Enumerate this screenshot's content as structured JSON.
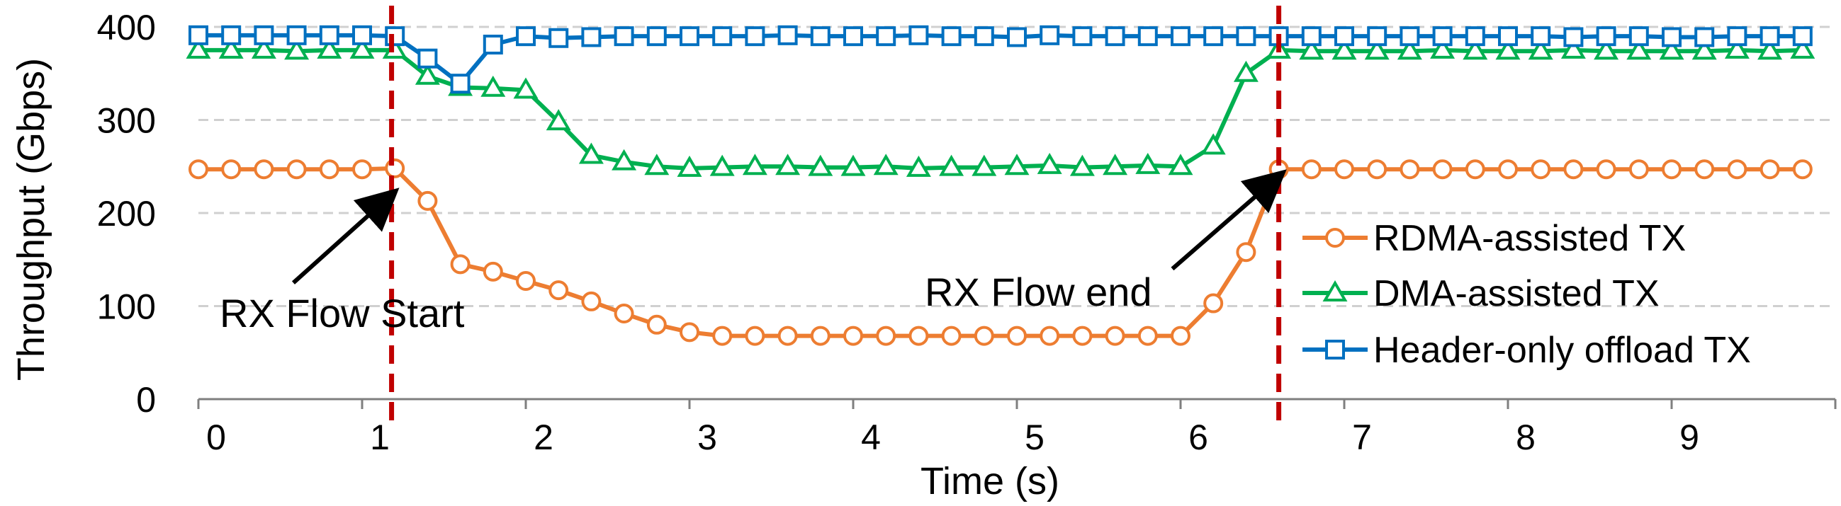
{
  "chart_data": {
    "type": "line",
    "title": "",
    "xlabel": "Time (s)",
    "ylabel": "Throughput (Gbps)",
    "xlim": [
      0,
      10
    ],
    "ylim": [
      0,
      400
    ],
    "xticks": [
      0,
      1,
      2,
      3,
      4,
      5,
      6,
      7,
      8,
      9
    ],
    "yticks": [
      0,
      100,
      200,
      300,
      400
    ],
    "grid": "horizontal-dashed",
    "legend_position": "right",
    "x": [
      0,
      0.2,
      0.4,
      0.6,
      0.8,
      1.0,
      1.2,
      1.4,
      1.6,
      1.8,
      2.0,
      2.2,
      2.4,
      2.6,
      2.8,
      3.0,
      3.2,
      3.4,
      3.6,
      3.8,
      4.0,
      4.2,
      4.4,
      4.6,
      4.8,
      5.0,
      5.2,
      5.4,
      5.6,
      5.8,
      6.0,
      6.2,
      6.4,
      6.6,
      6.8,
      7.0,
      7.2,
      7.4,
      7.6,
      7.8,
      8.0,
      8.2,
      8.4,
      8.6,
      8.8,
      9.0,
      9.2,
      9.4,
      9.6,
      9.8
    ],
    "series": [
      {
        "name": "RDMA-assisted TX",
        "color": "#ED7D31",
        "marker": "circle",
        "values": [
          247,
          247,
          247,
          247,
          247,
          247,
          248,
          213,
          145,
          137,
          127,
          117,
          105,
          92,
          80,
          72,
          68,
          68,
          68,
          68,
          68,
          68,
          68,
          68,
          68,
          68,
          68,
          68,
          68,
          68,
          68,
          103,
          158,
          247,
          247,
          247,
          247,
          247,
          247,
          247,
          247,
          247,
          247,
          247,
          247,
          247,
          247,
          247,
          247,
          247
        ]
      },
      {
        "name": "DMA-assisted TX",
        "color": "#00B050",
        "marker": "triangle",
        "values": [
          375,
          375,
          375,
          374,
          375,
          375,
          375,
          347,
          335,
          334,
          332,
          298,
          262,
          255,
          250,
          248,
          249,
          250,
          250,
          249,
          249,
          250,
          248,
          249,
          249,
          250,
          251,
          249,
          250,
          251,
          250,
          272,
          350,
          375,
          374,
          374,
          374,
          374,
          375,
          374,
          374,
          374,
          375,
          374,
          374,
          374,
          374,
          375,
          374,
          375
        ]
      },
      {
        "name": "Header-only offload TX",
        "color": "#0070C0",
        "marker": "square",
        "values": [
          391,
          391,
          391,
          391,
          391,
          391,
          390,
          366,
          339,
          381,
          390,
          388,
          389,
          390,
          390,
          390,
          390,
          390,
          391,
          390,
          390,
          390,
          391,
          390,
          390,
          389,
          391,
          390,
          390,
          390,
          390,
          390,
          390,
          390,
          390,
          390,
          390,
          390,
          390,
          390,
          390,
          390,
          389,
          390,
          390,
          389,
          389,
          390,
          390,
          390
        ]
      }
    ],
    "vlines": [
      {
        "x": 1.18,
        "color": "#C00000"
      },
      {
        "x": 6.6,
        "color": "#C00000"
      }
    ],
    "annotations": [
      {
        "text": "RX Flow Start",
        "arrow_from": [
          0.58,
          125
        ],
        "arrow_to": [
          1.15,
          215
        ]
      },
      {
        "text": "RX Flow end",
        "arrow_from": [
          5.95,
          140
        ],
        "arrow_to": [
          6.57,
          235
        ]
      }
    ]
  }
}
